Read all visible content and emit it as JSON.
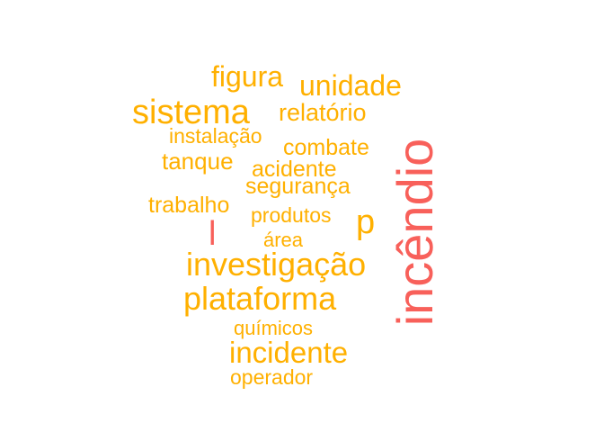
{
  "word_cloud": {
    "colors": {
      "primary": "#FFB000",
      "highlight": "#F8605A"
    },
    "words": {
      "figura": "figura",
      "unidade": "unidade",
      "sistema": "sistema",
      "relatorio": "relatório",
      "instalacao": "instalação",
      "combate": "combate",
      "tanque": "tanque",
      "acidente": "acidente",
      "seguranca": "segurança",
      "trabalho": "trabalho",
      "produtos": "produtos",
      "p": "p",
      "l": "l",
      "area": "área",
      "investigacao": "investigação",
      "plataforma": "plataforma",
      "quimicos": "químicos",
      "incidente": "incidente",
      "operador": "operador",
      "incendio": "incêndio"
    }
  }
}
